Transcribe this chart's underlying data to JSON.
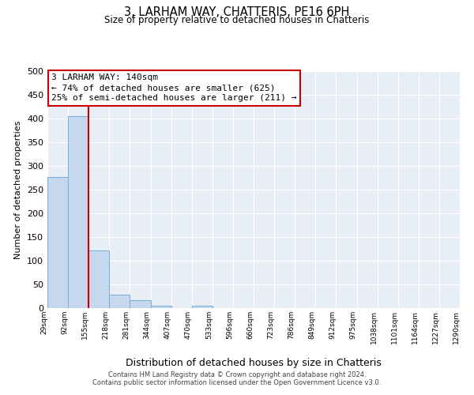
{
  "title_line1": "3, LARHAM WAY, CHATTERIS, PE16 6PH",
  "title_line2": "Size of property relative to detached houses in Chatteris",
  "xlabel": "Distribution of detached houses by size in Chatteris",
  "ylabel": "Number of detached properties",
  "bar_color": "#c5d8ee",
  "bar_edge_color": "#7aadd4",
  "annotation_box_color": "#cc0000",
  "vline_color": "#cc0000",
  "annotation_title": "3 LARHAM WAY: 140sqm",
  "annotation_line1": "← 74% of detached houses are smaller (625)",
  "annotation_line2": "25% of semi-detached houses are larger (211) →",
  "tick_labels": [
    "29sqm",
    "92sqm",
    "155sqm",
    "218sqm",
    "281sqm",
    "344sqm",
    "407sqm",
    "470sqm",
    "533sqm",
    "596sqm",
    "660sqm",
    "723sqm",
    "786sqm",
    "849sqm",
    "912sqm",
    "975sqm",
    "1038sqm",
    "1101sqm",
    "1164sqm",
    "1227sqm",
    "1290sqm"
  ],
  "bar_values": [
    277,
    405,
    122,
    29,
    16,
    5,
    0,
    5,
    0,
    0,
    0,
    0,
    0,
    0,
    0,
    0,
    0,
    0,
    0,
    0,
    3
  ],
  "ylim": [
    0,
    500
  ],
  "yticks": [
    0,
    50,
    100,
    150,
    200,
    250,
    300,
    350,
    400,
    450,
    500
  ],
  "vline_position": 2,
  "footer_line1": "Contains HM Land Registry data © Crown copyright and database right 2024.",
  "footer_line2": "Contains public sector information licensed under the Open Government Licence v3.0.",
  "background_color": "#e8eef5"
}
